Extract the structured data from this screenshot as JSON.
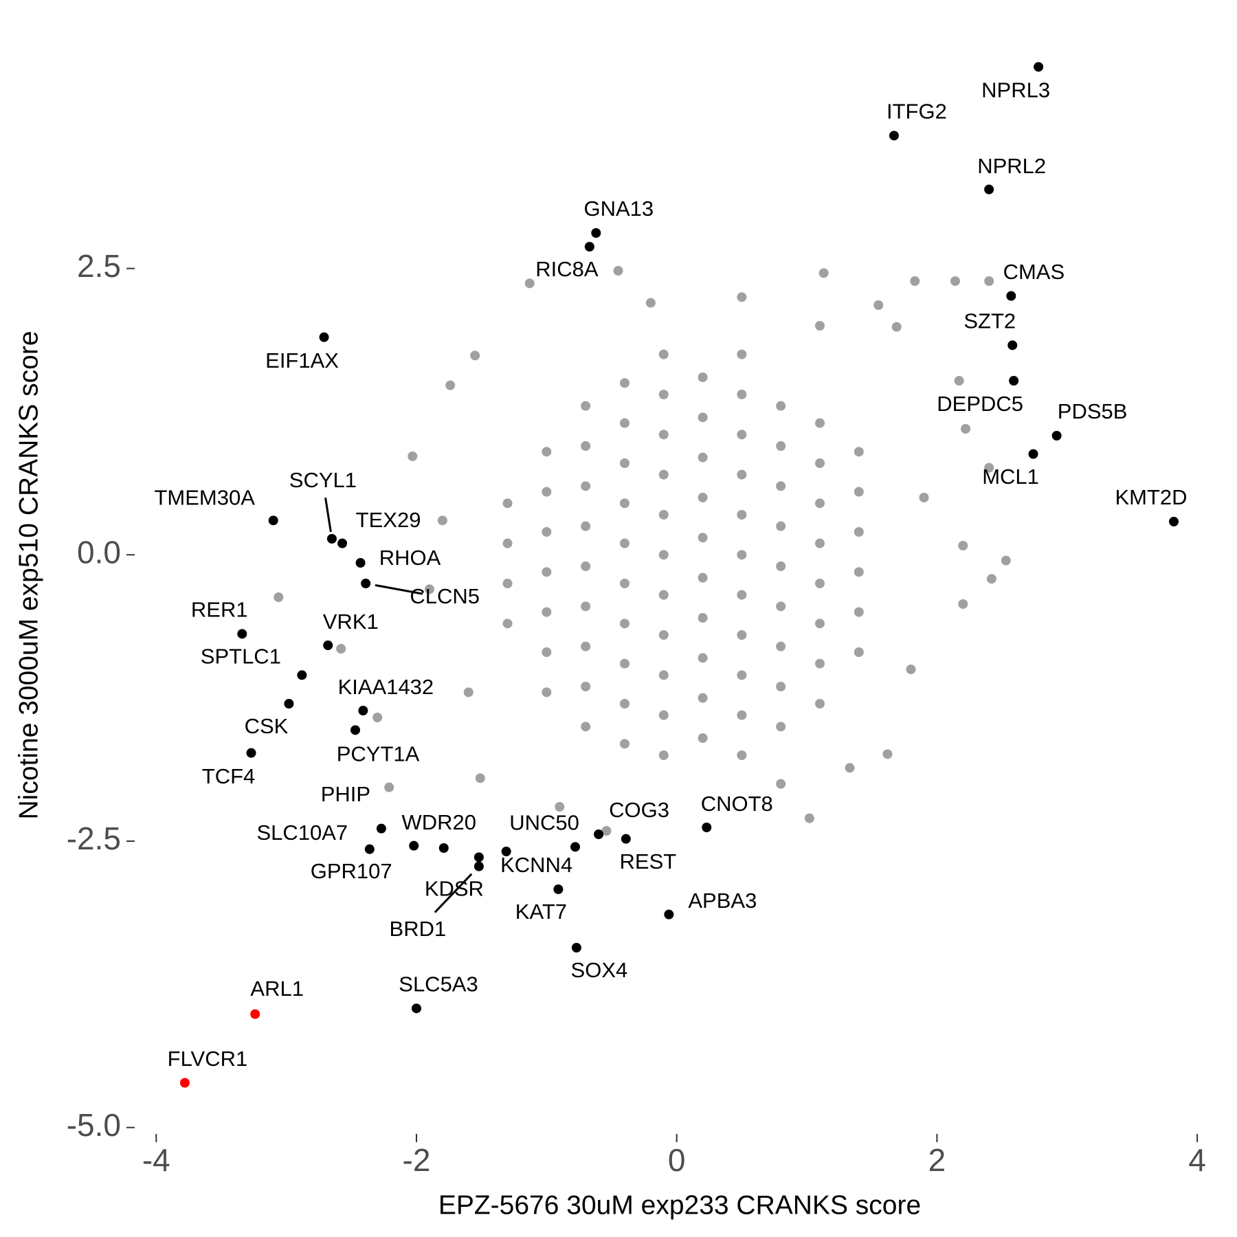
{
  "chart_data": {
    "type": "scatter",
    "x_label": "EPZ-5676 30uM exp233 CRANKS score",
    "y_label": "Nicotine 3000uM exp510 CRANKS score",
    "xlim": [
      -4.16,
      4.2
    ],
    "ylim": [
      -5.05,
      4.7
    ],
    "xticks": [
      -4,
      -2,
      0,
      2,
      4
    ],
    "yticks": [
      {
        "value": -5,
        "label": "-5.0"
      },
      -2.5,
      {
        "value": 0,
        "label": "0.0"
      },
      2.5
    ],
    "grid": false,
    "series": [
      {
        "color": "#a0a0a0",
        "x": [
          -0.45,
          -1.13,
          1.13,
          1.83,
          2.14,
          2.4,
          1.55,
          1.69,
          -1.55,
          -1.74,
          2.17,
          2.22,
          2.4,
          -2.03,
          2.2,
          2.53,
          2.42,
          2.2,
          -3.06,
          -2.58,
          -2.3,
          -2.21,
          1.02,
          1.33,
          1.62,
          -1.51,
          -0.54,
          -0.2,
          0.5,
          -1.9,
          -1.8,
          1.9,
          1.8,
          -1.6,
          0.8,
          -0.9,
          1.1,
          -1.3,
          -1.3,
          -1.3,
          -1.3,
          -1.0,
          -1.0,
          -1.0,
          -1.0,
          -1.0,
          -1.0,
          -1.0,
          -0.7,
          -0.7,
          -0.7,
          -0.7,
          -0.7,
          -0.7,
          -0.7,
          -0.7,
          -0.7,
          -0.4,
          -0.4,
          -0.4,
          -0.4,
          -0.4,
          -0.4,
          -0.4,
          -0.4,
          -0.4,
          -0.4,
          -0.1,
          -0.1,
          -0.1,
          -0.1,
          -0.1,
          -0.1,
          -0.1,
          -0.1,
          -0.1,
          -0.1,
          -0.1,
          0.2,
          0.2,
          0.2,
          0.2,
          0.2,
          0.2,
          0.2,
          0.2,
          0.2,
          0.2,
          0.5,
          0.5,
          0.5,
          0.5,
          0.5,
          0.5,
          0.5,
          0.5,
          0.5,
          0.5,
          0.5,
          0.8,
          0.8,
          0.8,
          0.8,
          0.8,
          0.8,
          0.8,
          0.8,
          0.8,
          1.1,
          1.1,
          1.1,
          1.1,
          1.1,
          1.1,
          1.1,
          1.1,
          1.4,
          1.4,
          1.4,
          1.4,
          1.4,
          1.4
        ],
        "y": [
          2.48,
          2.37,
          2.46,
          2.39,
          2.39,
          2.39,
          2.18,
          1.99,
          1.74,
          1.48,
          1.52,
          1.1,
          0.76,
          0.86,
          0.08,
          -0.05,
          -0.21,
          -0.43,
          -0.37,
          -0.82,
          -1.42,
          -2.03,
          -2.3,
          -1.86,
          -1.74,
          -1.95,
          -2.41,
          2.2,
          2.25,
          -0.3,
          0.3,
          0.5,
          -1.0,
          -1.2,
          -2.0,
          -2.2,
          2.0,
          -0.6,
          -0.25,
          0.1,
          0.45,
          -1.2,
          -0.85,
          -0.5,
          -0.15,
          0.2,
          0.55,
          0.9,
          -1.5,
          -1.15,
          -0.8,
          -0.45,
          -0.1,
          0.25,
          0.6,
          0.95,
          1.3,
          -1.65,
          -1.3,
          -0.95,
          -0.6,
          -0.25,
          0.1,
          0.45,
          0.8,
          1.15,
          1.5,
          -1.75,
          -1.4,
          -1.05,
          -0.7,
          -0.35,
          0,
          0.35,
          0.7,
          1.05,
          1.4,
          1.75,
          -1.6,
          -1.25,
          -0.9,
          -0.55,
          -0.2,
          0.15,
          0.5,
          0.85,
          1.2,
          1.55,
          -1.75,
          -1.4,
          -1.05,
          -0.7,
          -0.35,
          0,
          0.35,
          0.7,
          1.05,
          1.4,
          1.75,
          -1.5,
          -1.15,
          -0.8,
          -0.45,
          -0.1,
          0.25,
          0.6,
          0.95,
          1.3,
          -1.3,
          -0.95,
          -0.6,
          -0.25,
          0.1,
          0.45,
          0.8,
          1.15,
          -0.85,
          -0.5,
          -0.15,
          0.2,
          0.55,
          0.9
        ]
      },
      {
        "color": "#000000",
        "labels": [
          "NPRL3",
          "ITFG2",
          "NPRL2",
          "GNA13",
          "RIC8A",
          "CMAS",
          "SZT2",
          "DEPDC5",
          "PDS5B",
          "MCL1",
          "KMT2D",
          "EIF1AX",
          "TMEM30A",
          "SCYL1",
          "TEX29",
          "RHOA",
          "CLCN5",
          "RER1",
          "VRK1",
          "SPTLC1",
          "CSK",
          "KIAA1432",
          "PCYT1A",
          "TCF4",
          "PHIP",
          "SLC10A7",
          "GPR107",
          "WDR20",
          "KDSR",
          "BRD1",
          "KCNN4",
          "UNC50",
          "COG3",
          "REST",
          "CNOT8",
          "KAT7",
          "APBA3",
          "SOX4",
          "SLC5A3"
        ],
        "x": [
          2.78,
          1.67,
          2.4,
          -0.62,
          -0.67,
          2.57,
          2.58,
          2.59,
          2.92,
          2.74,
          3.82,
          -2.71,
          -3.1,
          -2.65,
          -2.57,
          -2.43,
          -2.39,
          -3.34,
          -2.68,
          -2.88,
          -2.98,
          -2.41,
          -2.47,
          -3.27,
          -2.27,
          -2.36,
          -2.02,
          -1.79,
          -1.52,
          -1.52,
          -1.31,
          -0.78,
          -0.6,
          -0.39,
          0.23,
          -0.91,
          -0.06,
          -0.77,
          -2.0
        ],
        "y": [
          4.26,
          3.66,
          3.19,
          2.81,
          2.69,
          2.26,
          1.83,
          1.52,
          1.04,
          0.88,
          0.29,
          1.9,
          0.3,
          0.14,
          0.1,
          -0.07,
          -0.25,
          -0.69,
          -0.79,
          -1.05,
          -1.3,
          -1.36,
          -1.53,
          -1.73,
          -2.39,
          -2.57,
          -2.54,
          -2.56,
          -2.64,
          -2.72,
          -2.59,
          -2.55,
          -2.44,
          -2.48,
          -2.38,
          -2.92,
          -3.14,
          -3.43,
          -3.96
        ]
      },
      {
        "color": "#ff0000",
        "labels": [
          "ARL1",
          "FLVCR1"
        ],
        "x": [
          -3.24,
          -3.78
        ],
        "y": [
          -4.01,
          -4.61
        ]
      }
    ]
  }
}
